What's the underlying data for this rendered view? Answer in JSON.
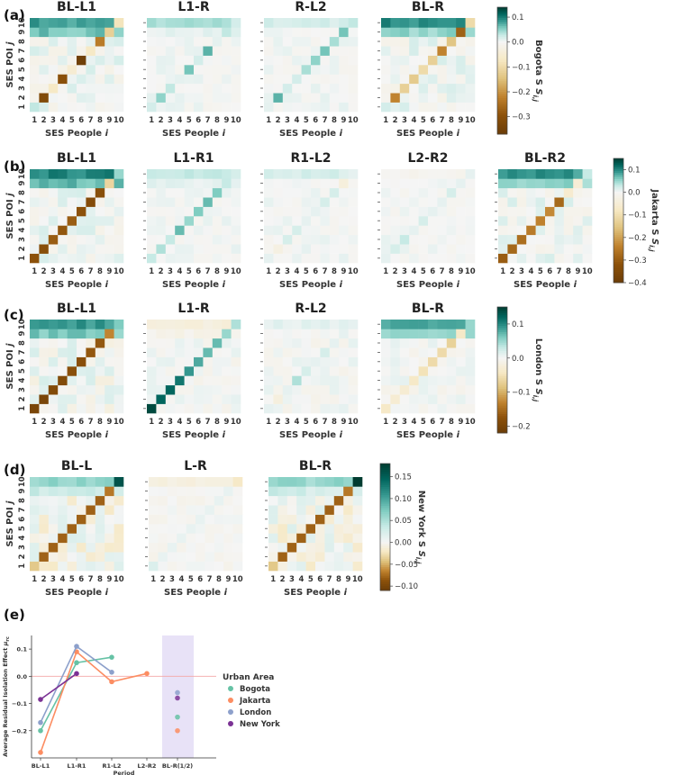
{
  "colors": {
    "bogota": "#66c2a5",
    "jakarta": "#fc8d62",
    "london": "#8da0cb",
    "newyork": "#7b3294",
    "neutral": "#f5f5f5",
    "positive": "#01665e",
    "negative": "#8c510a",
    "zero_line": "#f4a6a6",
    "highlight": "#e8e2f7"
  },
  "chart_data": [
    {
      "panel": "(a)",
      "type": "heatmap",
      "city": "Bogota",
      "colorbar_label": "Bogota S",
      "colorbar_ticks": [
        0.1,
        0.0,
        -0.1,
        -0.2,
        -0.3
      ],
      "vmin": -0.37,
      "vmax": 0.14,
      "xlabel": "SES People",
      "ylabel": "SES POI",
      "ticks": [
        "1",
        "2",
        "3",
        "4",
        "5",
        "6",
        "7",
        "8",
        "9",
        "10"
      ],
      "subplots": [
        {
          "title": "BL-L1",
          "diag": [
            0.03,
            -0.32,
            -0.07,
            -0.3,
            -0.05,
            -0.36,
            -0.07,
            -0.23,
            -0.12,
            -0.08
          ],
          "offdiag_amp": 0.02,
          "top_rows": [
            0.08,
            0.06
          ]
        },
        {
          "title": "L1-R",
          "diag": [
            0.02,
            0.05,
            0.03,
            0.01,
            0.06,
            0.02,
            0.07,
            0.01,
            0.03,
            0.02
          ],
          "offdiag_amp": 0.01,
          "top_rows": [
            0.04,
            0.01
          ]
        },
        {
          "title": "R-L2",
          "diag": [
            0.01,
            0.07,
            0.02,
            0.02,
            0.04,
            0.05,
            0.06,
            0.04,
            0.06,
            0.03
          ],
          "offdiag_amp": 0.01,
          "top_rows": [
            0.02,
            0.0
          ]
        },
        {
          "title": "BL-R",
          "diag": [
            0.02,
            -0.22,
            -0.12,
            -0.13,
            -0.1,
            -0.12,
            -0.22,
            -0.14,
            -0.27,
            -0.1
          ],
          "offdiag_amp": 0.02,
          "top_rows": [
            0.09,
            0.05
          ]
        }
      ]
    },
    {
      "panel": "(b)",
      "type": "heatmap",
      "city": "Jakarta",
      "colorbar_label": "Jakarta S",
      "colorbar_ticks": [
        0.1,
        0.0,
        -0.1,
        -0.2,
        -0.3,
        -0.4
      ],
      "vmin": -0.4,
      "vmax": 0.15,
      "xlabel": "SES People",
      "ylabel": "SES POI",
      "ticks": [
        "1",
        "2",
        "3",
        "4",
        "5",
        "6",
        "7",
        "8",
        "9",
        "10"
      ],
      "subplots": [
        {
          "title": "BL-L1",
          "diag": [
            -0.32,
            -0.33,
            -0.3,
            -0.31,
            -0.3,
            -0.32,
            -0.34,
            -0.33,
            -0.12,
            0.05
          ],
          "offdiag_amp": 0.02,
          "top_rows": [
            0.1,
            0.07
          ]
        },
        {
          "title": "L1-R1",
          "diag": [
            0.03,
            0.04,
            0.03,
            0.07,
            0.05,
            0.06,
            0.07,
            0.06,
            0.03,
            0.02
          ],
          "offdiag_amp": 0.01,
          "top_rows": [
            0.03,
            0.01
          ]
        },
        {
          "title": "R1-L2",
          "diag": [
            0.01,
            -0.03,
            0.02,
            0.02,
            0.01,
            0.01,
            0.02,
            0.02,
            -0.04,
            0.01
          ],
          "offdiag_amp": 0.01,
          "top_rows": [
            0.02,
            0.0
          ]
        },
        {
          "title": "L2-R2",
          "diag": [
            0.01,
            0.02,
            0.03,
            0.01,
            0.02,
            0.01,
            0.01,
            0.02,
            0.01,
            0.01
          ],
          "offdiag_amp": 0.01,
          "top_rows": [
            -0.01,
            0.0
          ]
        },
        {
          "title": "BL-R2",
          "diag": [
            -0.3,
            -0.28,
            -0.27,
            -0.25,
            -0.24,
            -0.23,
            -0.28,
            -0.06,
            -0.05,
            0.03
          ],
          "offdiag_amp": 0.02,
          "top_rows": [
            0.09,
            0.05
          ]
        }
      ]
    },
    {
      "panel": "(c)",
      "type": "heatmap",
      "city": "London",
      "colorbar_label": "London S",
      "colorbar_ticks": [
        0.1,
        0.0,
        -0.1,
        -0.2
      ],
      "vmin": -0.22,
      "vmax": 0.15,
      "xlabel": "SES People",
      "ylabel": "SES POI",
      "ticks": [
        "1",
        "2",
        "3",
        "4",
        "5",
        "6",
        "7",
        "8",
        "9",
        "10"
      ],
      "subplots": [
        {
          "title": "BL-L1",
          "diag": [
            -0.2,
            -0.2,
            -0.19,
            -0.19,
            -0.18,
            -0.18,
            -0.17,
            -0.17,
            -0.13,
            0.06
          ],
          "offdiag_amp": 0.02,
          "top_rows": [
            0.09,
            0.06
          ]
        },
        {
          "title": "L1-R",
          "diag": [
            0.14,
            0.12,
            0.12,
            0.11,
            0.09,
            0.08,
            0.07,
            0.07,
            0.05,
            0.04
          ],
          "offdiag_amp": 0.01,
          "top_rows": [
            -0.02,
            -0.01
          ]
        },
        {
          "title": "R-L2",
          "diag": [
            0.01,
            -0.02,
            0.01,
            0.04,
            0.02,
            0.01,
            0.02,
            0.01,
            0.01,
            0.01
          ],
          "offdiag_amp": 0.01,
          "top_rows": [
            0.01,
            0.0
          ]
        },
        {
          "title": "BL-R",
          "diag": [
            -0.04,
            -0.03,
            -0.03,
            -0.04,
            -0.05,
            -0.06,
            -0.06,
            -0.07,
            -0.04,
            0.05
          ],
          "offdiag_amp": 0.01,
          "top_rows": [
            0.08,
            0.05
          ]
        }
      ]
    },
    {
      "panel": "(d)",
      "type": "heatmap",
      "city": "New York",
      "colorbar_label": "New York S",
      "colorbar_ticks": [
        0.15,
        0.1,
        0.05,
        0.0,
        -0.05,
        -0.1
      ],
      "vmin": -0.11,
      "vmax": 0.18,
      "xlabel": "SES People",
      "ylabel": "SES POI",
      "ticks": [
        "1",
        "2",
        "3",
        "4",
        "5",
        "6",
        "7",
        "8",
        "9",
        "10"
      ],
      "subplots": [
        {
          "title": "BL-L",
          "diag": [
            -0.04,
            -0.08,
            -0.08,
            -0.08,
            -0.08,
            -0.08,
            -0.08,
            -0.08,
            -0.07,
            0.16
          ],
          "offdiag_amp": 0.02,
          "top_rows": [
            0.06,
            0.03
          ]
        },
        {
          "title": "L-R",
          "diag": [
            0.02,
            0.01,
            0.01,
            0.01,
            0.01,
            0.01,
            0.01,
            0.01,
            0.01,
            -0.02
          ],
          "offdiag_amp": 0.005,
          "top_rows": [
            -0.01,
            0.0
          ]
        },
        {
          "title": "BL-R",
          "diag": [
            -0.04,
            -0.08,
            -0.08,
            -0.08,
            -0.08,
            -0.08,
            -0.08,
            -0.08,
            -0.07,
            0.18
          ],
          "offdiag_amp": 0.02,
          "top_rows": [
            0.06,
            0.03
          ]
        }
      ]
    },
    {
      "panel": "(e)",
      "type": "line",
      "ylabel": "Average Residual Isolation Effect",
      "xlabel": "Period",
      "categories": [
        "BL-L1",
        "L1-R1",
        "R1-L2",
        "L2-R2",
        "BL-R(1/2)"
      ],
      "ylim": [
        -0.3,
        0.15
      ],
      "yticks": [
        0.1,
        0.0,
        -0.1,
        -0.2
      ],
      "legend_title": "Urban Area",
      "legend_position": "right",
      "series": [
        {
          "name": "Bogota",
          "values": [
            -0.2,
            0.05,
            0.07,
            null,
            -0.15
          ]
        },
        {
          "name": "Jakarta",
          "values": [
            -0.28,
            0.09,
            -0.02,
            0.01,
            -0.2
          ]
        },
        {
          "name": "London",
          "values": [
            -0.17,
            0.11,
            0.015,
            null,
            -0.06
          ]
        },
        {
          "name": "New York",
          "values": [
            -0.085,
            0.01,
            null,
            null,
            -0.08
          ]
        }
      ]
    }
  ]
}
